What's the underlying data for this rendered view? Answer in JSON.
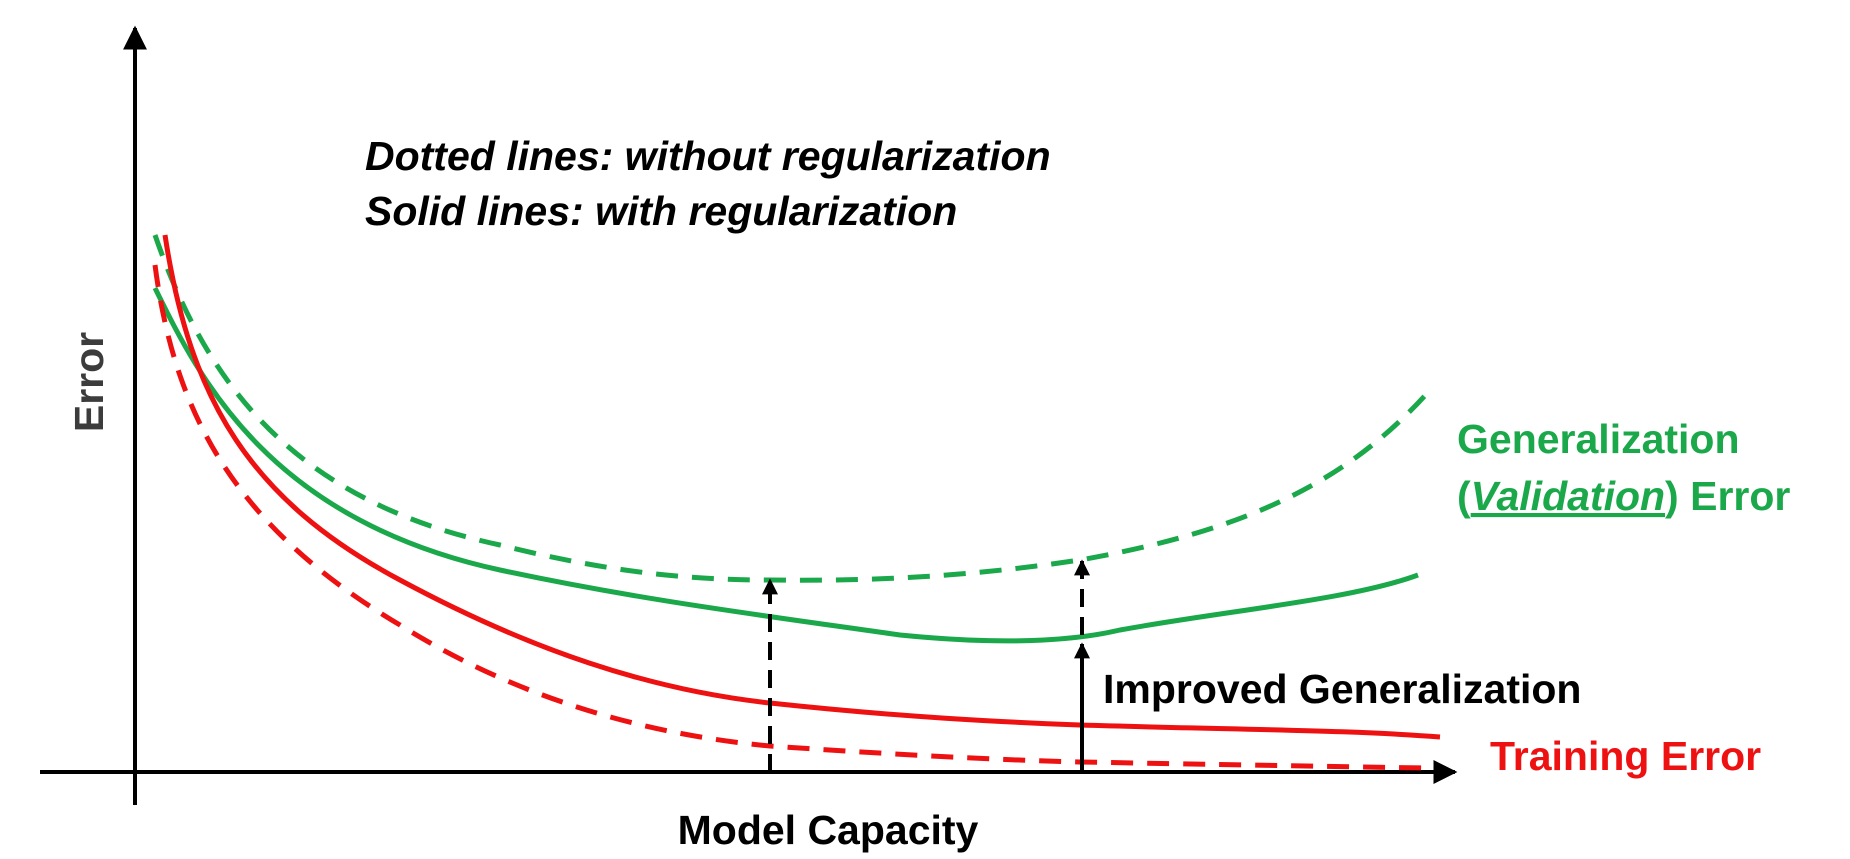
{
  "notes": {
    "line1": "Dotted lines: without regularization",
    "line2": "Solid lines: with regularization"
  },
  "axes": {
    "x_title": "Model Capacity",
    "y_title": "Error"
  },
  "labels": {
    "generalization_line1": "Generalization",
    "generalization_open": "(",
    "generalization_italic": "Validation",
    "generalization_close": ") Error",
    "training": "Training Error",
    "improved": "Improved Generalization"
  },
  "colors": {
    "green": "#1aa84a",
    "red": "#ee1111",
    "axis": "#000000",
    "axis_title": "#3c3c3c"
  }
}
